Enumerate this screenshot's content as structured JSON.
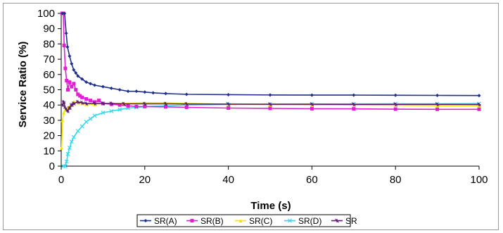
{
  "chart_data": {
    "type": "line",
    "title": "",
    "xlabel": "Time (s)",
    "ylabel": "Service Ratio (%)",
    "xlim": [
      0,
      100
    ],
    "ylim": [
      0,
      100
    ],
    "x_ticks": [
      0,
      20,
      40,
      60,
      80,
      100
    ],
    "y_ticks": [
      0,
      10,
      20,
      30,
      40,
      50,
      60,
      70,
      80,
      90,
      100
    ],
    "grid": false,
    "legend_position": "bottom",
    "series": [
      {
        "name": "SR(A)",
        "color": "#1f2f8c",
        "marker": "diamond",
        "x": [
          0.3,
          0.8,
          1.2,
          1.5,
          2,
          2.5,
          3,
          3.5,
          4,
          5,
          6,
          7,
          8,
          10,
          12,
          14,
          16,
          18,
          20,
          22,
          25,
          30,
          40,
          50,
          60,
          70,
          80,
          90,
          100
        ],
        "y": [
          100,
          100,
          87,
          78,
          72,
          67,
          63,
          61,
          59,
          57,
          55,
          54,
          53,
          52,
          51,
          50,
          49,
          49,
          48.5,
          48,
          47.5,
          47,
          46.8,
          46.6,
          46.5,
          46.5,
          46.4,
          46.3,
          46.2
        ]
      },
      {
        "name": "SR(B)",
        "color": "#e020d0",
        "marker": "square",
        "x": [
          0.2,
          0.5,
          0.7,
          1,
          1.3,
          1.6,
          2,
          2.5,
          3,
          3.5,
          4,
          4.5,
          5,
          6,
          7,
          8,
          9,
          10,
          12,
          14,
          16,
          18,
          20,
          25,
          30,
          40,
          50,
          60,
          70,
          80,
          90,
          100
        ],
        "y": [
          100,
          100,
          79,
          64,
          56,
          50,
          55,
          52,
          54,
          50,
          47,
          46,
          45,
          44,
          43,
          42,
          43,
          41,
          40.5,
          40,
          39.5,
          39,
          39,
          38.8,
          38.5,
          38,
          37.8,
          37.6,
          37.5,
          37.3,
          37.2,
          37.2
        ]
      },
      {
        "name": "SR(C)",
        "color": "#f5e600",
        "marker": "triangle",
        "x": [
          0.1,
          0.3,
          0.6,
          1,
          1.5,
          2,
          2.5,
          3,
          4,
          5,
          6,
          8,
          10,
          12,
          15,
          20,
          25,
          30,
          40,
          50,
          60,
          70,
          80,
          90,
          100
        ],
        "y": [
          12,
          30,
          35,
          37,
          38,
          39,
          40,
          42,
          41.5,
          41,
          40.5,
          40.5,
          41,
          41,
          41,
          41.5,
          41.5,
          41,
          40.5,
          40.2,
          40,
          40,
          39.8,
          39.6,
          39.5
        ]
      },
      {
        "name": "SR(D)",
        "color": "#30d8f0",
        "marker": "x",
        "x": [
          0.5,
          1,
          1.3,
          1.6,
          2,
          2.5,
          3,
          4,
          5,
          6,
          7,
          8,
          10,
          12,
          14,
          16,
          18,
          20,
          25,
          30,
          40,
          50,
          60,
          70,
          80,
          90,
          100
        ],
        "y": [
          0,
          0,
          3,
          8,
          12,
          16,
          19,
          23,
          26,
          29,
          31,
          33,
          35,
          36,
          37,
          38,
          38.5,
          39,
          39.5,
          40,
          40.3,
          40.5,
          40.6,
          40.7,
          40.8,
          40.8,
          40.9
        ]
      },
      {
        "name": "SR",
        "color": "#5a1a6e",
        "marker": "star",
        "x": [
          0.3,
          0.6,
          1,
          1.5,
          2,
          2.5,
          3,
          4,
          5,
          6,
          8,
          10,
          12,
          15,
          20,
          25,
          30,
          40,
          50,
          60,
          70,
          80,
          90,
          100
        ],
        "y": [
          40,
          42,
          38,
          36,
          38,
          40,
          41,
          42,
          41.5,
          41,
          41,
          41,
          41,
          40.8,
          40.8,
          40.8,
          40.7,
          40.6,
          40.5,
          40.5,
          40.4,
          40.4,
          40.4,
          40.3
        ]
      }
    ]
  }
}
